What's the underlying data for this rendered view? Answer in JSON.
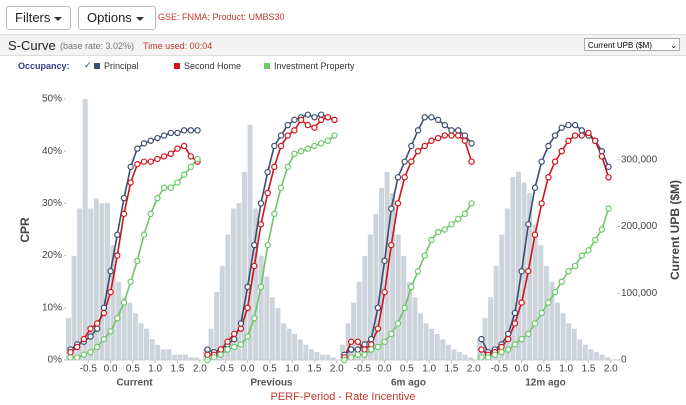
{
  "toolbar": {
    "filters": "Filters",
    "options": "Options",
    "context": "GSE: FNMA; Product: UMBS30"
  },
  "header": {
    "title": "S-Curve",
    "base_rate": "(base rate: 3.02%)",
    "time_used": "Time used: 00:04",
    "dropdown": "Current UPB ($M)"
  },
  "legend_label": "Occupancy:",
  "chart_data": {
    "type": "line",
    "ylabel": "CPR",
    "y2label": "Current UPB ($M)",
    "xlabel": "PERF-Period - Rate Incentive",
    "series": [
      {
        "name": "Principal",
        "color": "#3d4e6e"
      },
      {
        "name": "Second Home",
        "color": "#d0141a"
      },
      {
        "name": "Investment Property",
        "color": "#6cc76a"
      }
    ],
    "bar_color": "#c5ccd6",
    "xlim": [
      -1,
      2.05
    ],
    "xticks": [
      -0.5,
      {
        "value": 0,
        "label": "0.0"
      },
      0.5,
      {
        "value": 1,
        "label": "1.0"
      },
      1.5,
      {
        "value": 2,
        "label": "2.0"
      }
    ],
    "ylim": [
      0,
      50
    ],
    "yticks": [
      {
        "value": 0,
        "label": "0%"
      },
      {
        "value": 10,
        "label": "10%"
      },
      {
        "value": 20,
        "label": "20%"
      },
      {
        "value": 30,
        "label": "30%"
      },
      {
        "value": 40,
        "label": "40%"
      },
      {
        "value": 50,
        "label": "50%"
      }
    ],
    "y2lim": [
      0,
      391000
    ],
    "y2ticks": [
      0,
      {
        "value": 100000,
        "label": "100,000"
      },
      {
        "value": 200000,
        "label": "200,000"
      },
      {
        "value": 300000,
        "label": "300,000"
      }
    ],
    "x": [
      -0.9,
      -0.75,
      -0.6,
      -0.45,
      -0.3,
      -0.15,
      0,
      0.15,
      0.3,
      0.45,
      0.6,
      0.75,
      0.9,
      1.05,
      1.2,
      1.35,
      1.5,
      1.65,
      1.8,
      1.95
    ],
    "bins": [
      -1,
      -0.875,
      -0.75,
      -0.625,
      -0.5,
      -0.375,
      -0.25,
      -0.125,
      0,
      0.125,
      0.25,
      0.375,
      0.5,
      0.625,
      0.75,
      0.875,
      1,
      1.125,
      1.25,
      1.375,
      1.5,
      1.625,
      1.75,
      1.875,
      2
    ],
    "panels": [
      {
        "name": "Current",
        "bars": [
          63000,
          156000,
          227000,
          391000,
          227000,
          242000,
          235000,
          235000,
          172000,
          117000,
          94000,
          86000,
          70000,
          55000,
          47000,
          31000,
          23000,
          16000,
          16000,
          8000,
          8000,
          8000,
          4000,
          4000
        ],
        "lines": [
          [
            2,
            3,
            3.5,
            4.5,
            6,
            10,
            17,
            24,
            31,
            37,
            40.5,
            41.5,
            42,
            42.5,
            43,
            43.5,
            43.5,
            44,
            44,
            44
          ],
          [
            1.5,
            2.5,
            4,
            6,
            7,
            9,
            13,
            20,
            28,
            34,
            37.5,
            38,
            38,
            38.5,
            39,
            39.5,
            40.5,
            41,
            39,
            38
          ],
          [
            0.5,
            0.5,
            1,
            1.5,
            2.5,
            4,
            5.5,
            8,
            11,
            15,
            19,
            24,
            28,
            31,
            33,
            33,
            34,
            35.5,
            37,
            38.5
          ]
        ]
      },
      {
        "name": "Previous",
        "bars": [
          16000,
          47000,
          102000,
          141000,
          188000,
          227000,
          235000,
          282000,
          352000,
          227000,
          156000,
          125000,
          94000,
          78000,
          55000,
          47000,
          39000,
          31000,
          23000,
          16000,
          12000,
          8000,
          8000,
          4000
        ],
        "lines": [
          [
            2,
            1.5,
            2,
            3,
            4,
            7,
            14,
            22,
            30,
            36,
            41,
            43,
            45,
            46,
            46.5,
            47,
            46.5,
            47,
            46.5,
            46
          ],
          [
            1,
            1,
            2,
            3.5,
            5,
            6,
            10,
            18,
            26,
            32,
            37,
            41,
            43,
            44,
            46,
            45,
            44.5,
            46,
            46.5,
            46
          ],
          [
            0,
            0.5,
            1,
            2,
            2.5,
            3,
            4.5,
            8,
            14,
            22,
            28,
            33,
            37,
            39.5,
            40,
            40.5,
            41,
            41.5,
            42,
            43
          ]
        ]
      },
      {
        "name": "6m ago",
        "bars": [
          23000,
          55000,
          86000,
          117000,
          156000,
          188000,
          219000,
          258000,
          282000,
          250000,
          188000,
          156000,
          117000,
          94000,
          70000,
          55000,
          47000,
          39000,
          31000,
          23000,
          16000,
          12000,
          8000,
          4000
        ],
        "lines": [
          [
            1,
            2,
            2,
            3,
            4,
            10,
            19,
            29,
            35,
            38,
            41,
            44,
            46.5,
            46.5,
            46,
            45,
            44,
            44,
            43,
            41.5
          ],
          [
            0.5,
            3.5,
            3.5,
            2,
            3,
            6,
            13,
            22,
            30,
            35,
            38,
            40,
            41,
            42,
            42.5,
            43,
            43,
            43,
            42,
            38
          ],
          [
            0,
            0.5,
            1,
            1,
            2,
            2.5,
            3.5,
            5,
            7,
            10,
            14,
            17,
            20,
            23,
            24.5,
            25,
            26,
            27,
            28,
            30
          ]
        ]
      },
      {
        "name": "12m ago",
        "bars": [
          31000,
          63000,
          94000,
          141000,
          188000,
          227000,
          274000,
          282000,
          266000,
          250000,
          203000,
          172000,
          141000,
          117000,
          86000,
          70000,
          55000,
          47000,
          31000,
          23000,
          16000,
          12000,
          8000,
          4000
        ],
        "lines": [
          [
            4,
            1.5,
            2,
            3,
            5,
            9,
            17,
            26,
            33,
            38,
            41,
            43,
            44.5,
            45,
            45,
            44,
            43,
            42,
            40,
            37
          ],
          [
            2,
            1,
            1.5,
            2.5,
            4,
            7,
            11,
            17,
            24,
            30,
            35,
            38,
            40,
            42,
            43,
            43,
            43.5,
            42,
            39,
            35
          ],
          [
            0.5,
            0.5,
            1,
            1.5,
            2,
            3,
            4,
            5,
            7,
            9,
            11,
            13,
            15,
            17,
            18,
            20,
            21,
            23,
            25,
            29
          ]
        ]
      }
    ]
  }
}
